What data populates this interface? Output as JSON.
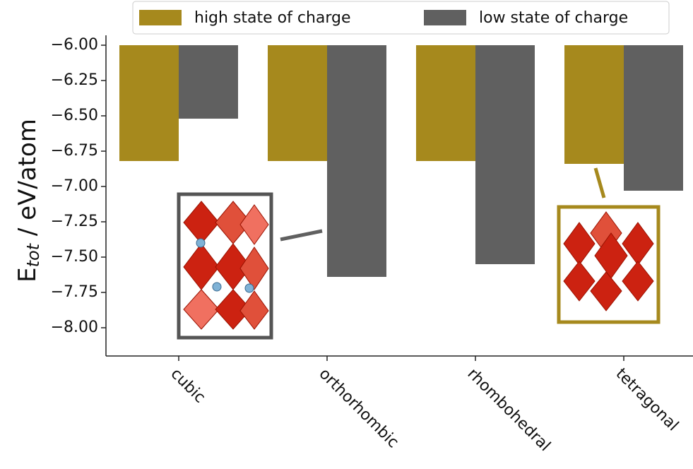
{
  "chart_data": {
    "type": "bar",
    "ylabel": {
      "base": "E",
      "sub": "tot",
      "rest": " / eV/atom"
    },
    "categories": [
      "cubic",
      "orthorhombic",
      "rhombohedral",
      "tetragonal"
    ],
    "series": [
      {
        "name": "high state of charge",
        "color": "#a6891d",
        "values": [
          -6.82,
          -6.82,
          -6.82,
          -6.84
        ]
      },
      {
        "name": "low state of charge",
        "color": "#606060",
        "values": [
          -6.52,
          -7.64,
          -7.55,
          -7.03
        ]
      }
    ],
    "ylim": [
      -8.2,
      -6.0
    ],
    "yticks": [
      {
        "value": -6.0,
        "label": "−6.00"
      },
      {
        "value": -6.25,
        "label": "−6.25"
      },
      {
        "value": -6.5,
        "label": "−6.50"
      },
      {
        "value": -6.75,
        "label": "−6.75"
      },
      {
        "value": -7.0,
        "label": "−7.00"
      },
      {
        "value": -7.25,
        "label": "−7.25"
      },
      {
        "value": -7.5,
        "label": "−7.50"
      },
      {
        "value": -7.75,
        "label": "−7.75"
      },
      {
        "value": -8.0,
        "label": "−8.00"
      }
    ],
    "legend": "top"
  }
}
